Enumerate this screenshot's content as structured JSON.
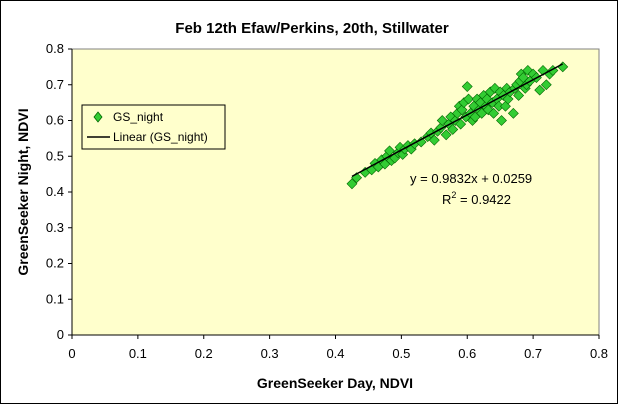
{
  "chart_data": {
    "type": "scatter",
    "title": "Feb 12th Efaw/Perkins, 20th, Stillwater",
    "xlabel": "GreenSeeker Day, NDVI",
    "ylabel": "GreenSeeker Night, NDVI",
    "xlim": [
      0,
      0.8
    ],
    "ylim": [
      0,
      0.8
    ],
    "xticks": [
      "0",
      "0.1",
      "0.2",
      "0.3",
      "0.4",
      "0.5",
      "0.6",
      "0.7",
      "0.8"
    ],
    "yticks": [
      "0",
      "0.1",
      "0.2",
      "0.3",
      "0.4",
      "0.5",
      "0.6",
      "0.7",
      "0.8"
    ],
    "grid": false,
    "legend_position": "left",
    "colors": {
      "plot_bg": "#ffffcc",
      "marker": "#33cc33",
      "marker_edge": "#006600",
      "trendline": "#000000"
    },
    "series": [
      {
        "name": "GS_night",
        "marker": "diamond",
        "points": [
          [
            0.425,
            0.423
          ],
          [
            0.432,
            0.44
          ],
          [
            0.445,
            0.455
          ],
          [
            0.455,
            0.462
          ],
          [
            0.46,
            0.48
          ],
          [
            0.465,
            0.47
          ],
          [
            0.47,
            0.49
          ],
          [
            0.475,
            0.478
          ],
          [
            0.478,
            0.5
          ],
          [
            0.482,
            0.515
          ],
          [
            0.485,
            0.488
          ],
          [
            0.49,
            0.495
          ],
          [
            0.495,
            0.51
          ],
          [
            0.498,
            0.525
          ],
          [
            0.502,
            0.505
          ],
          [
            0.505,
            0.52
          ],
          [
            0.51,
            0.53
          ],
          [
            0.515,
            0.52
          ],
          [
            0.52,
            0.535
          ],
          [
            0.53,
            0.54
          ],
          [
            0.54,
            0.555
          ],
          [
            0.545,
            0.565
          ],
          [
            0.55,
            0.545
          ],
          [
            0.555,
            0.57
          ],
          [
            0.56,
            0.58
          ],
          [
            0.562,
            0.6
          ],
          [
            0.568,
            0.56
          ],
          [
            0.572,
            0.59
          ],
          [
            0.575,
            0.61
          ],
          [
            0.578,
            0.575
          ],
          [
            0.582,
            0.6
          ],
          [
            0.585,
            0.62
          ],
          [
            0.588,
            0.64
          ],
          [
            0.59,
            0.59
          ],
          [
            0.592,
            0.63
          ],
          [
            0.595,
            0.65
          ],
          [
            0.598,
            0.61
          ],
          [
            0.6,
            0.695
          ],
          [
            0.602,
            0.66
          ],
          [
            0.605,
            0.62
          ],
          [
            0.608,
            0.6
          ],
          [
            0.61,
            0.64
          ],
          [
            0.612,
            0.61
          ],
          [
            0.615,
            0.66
          ],
          [
            0.618,
            0.63
          ],
          [
            0.62,
            0.65
          ],
          [
            0.622,
            0.62
          ],
          [
            0.625,
            0.67
          ],
          [
            0.628,
            0.64
          ],
          [
            0.63,
            0.66
          ],
          [
            0.632,
            0.63
          ],
          [
            0.635,
            0.68
          ],
          [
            0.638,
            0.65
          ],
          [
            0.64,
            0.62
          ],
          [
            0.642,
            0.69
          ],
          [
            0.645,
            0.66
          ],
          [
            0.648,
            0.64
          ],
          [
            0.65,
            0.68
          ],
          [
            0.652,
            0.6
          ],
          [
            0.655,
            0.67
          ],
          [
            0.658,
            0.64
          ],
          [
            0.66,
            0.69
          ],
          [
            0.662,
            0.66
          ],
          [
            0.665,
            0.68
          ],
          [
            0.67,
            0.62
          ],
          [
            0.672,
            0.69
          ],
          [
            0.675,
            0.7
          ],
          [
            0.678,
            0.67
          ],
          [
            0.68,
            0.71
          ],
          [
            0.682,
            0.73
          ],
          [
            0.685,
            0.72
          ],
          [
            0.688,
            0.69
          ],
          [
            0.69,
            0.7
          ],
          [
            0.692,
            0.74
          ],
          [
            0.695,
            0.71
          ],
          [
            0.7,
            0.73
          ],
          [
            0.705,
            0.72
          ],
          [
            0.71,
            0.685
          ],
          [
            0.715,
            0.74
          ],
          [
            0.72,
            0.7
          ],
          [
            0.725,
            0.73
          ],
          [
            0.73,
            0.74
          ],
          [
            0.745,
            0.75
          ]
        ]
      },
      {
        "name": "Linear (GS_night)",
        "type": "line",
        "slope": 0.9832,
        "intercept": 0.0259,
        "x_range": [
          0.425,
          0.745
        ]
      }
    ],
    "annotations": {
      "equation": "y = 0.9832x + 0.0259",
      "r2_prefix": "R",
      "r2_sup": "2",
      "r2_value": " = 0.9422"
    }
  }
}
